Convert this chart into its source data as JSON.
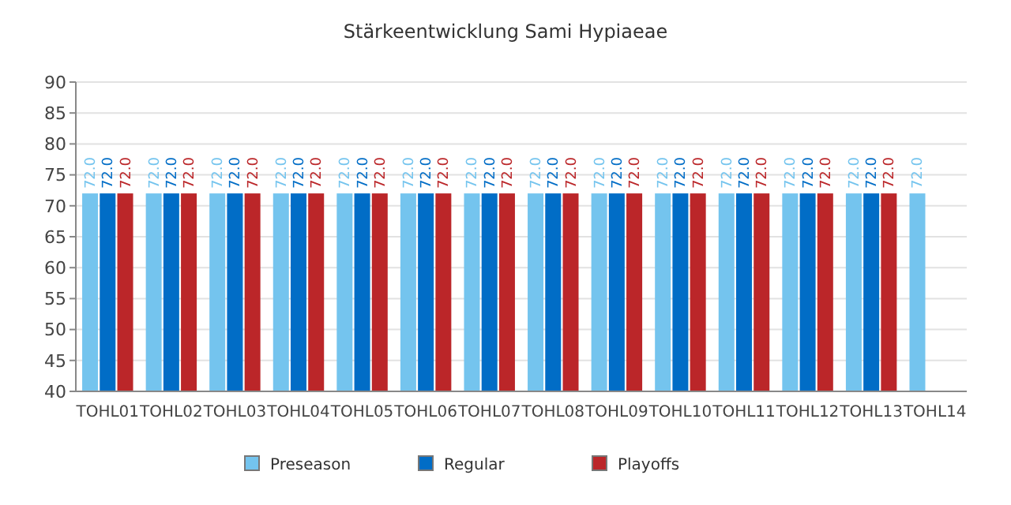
{
  "chart_data": {
    "type": "bar",
    "title": "Stärkeentwicklung Sami Hypiaeae",
    "categories": [
      "TOHL01",
      "TOHL02",
      "TOHL03",
      "TOHL04",
      "TOHL05",
      "TOHL06",
      "TOHL07",
      "TOHL08",
      "TOHL09",
      "TOHL10",
      "TOHL11",
      "TOHL12",
      "TOHL13",
      "TOHL14"
    ],
    "series": [
      {
        "name": "Preseason",
        "color": "#74c4ee",
        "values": [
          72,
          72,
          72,
          72,
          72,
          72,
          72,
          72,
          72,
          72,
          72,
          72,
          72,
          72
        ],
        "value_labels": [
          "72.0",
          "72.0",
          "72.0",
          "72.0",
          "72.0",
          "72.0",
          "72.0",
          "72.0",
          "72.0",
          "72.0",
          "72.0",
          "72.0",
          "72.0",
          "72.0"
        ]
      },
      {
        "name": "Regular",
        "color": "#016dc6",
        "values": [
          72,
          72,
          72,
          72,
          72,
          72,
          72,
          72,
          72,
          72,
          72,
          72,
          72,
          null
        ],
        "value_labels": [
          "72.0",
          "72.0",
          "72.0",
          "72.0",
          "72.0",
          "72.0",
          "72.0",
          "72.0",
          "72.0",
          "72.0",
          "72.0",
          "72.0",
          "72.0",
          null
        ]
      },
      {
        "name": "Playoffs",
        "color": "#bb2629",
        "values": [
          72,
          72,
          72,
          72,
          72,
          72,
          72,
          72,
          72,
          72,
          72,
          72,
          72,
          null
        ],
        "value_labels": [
          "72.0",
          "72.0",
          "72.0",
          "72.0",
          "72.0",
          "72.0",
          "72.0",
          "72.0",
          "72.0",
          "72.0",
          "72.0",
          "72.0",
          "72.0",
          null
        ]
      }
    ],
    "ylim": [
      40,
      90
    ],
    "yticks": [
      40,
      45,
      50,
      55,
      60,
      65,
      70,
      75,
      80,
      85,
      90
    ],
    "grid": "y",
    "legend": "bottom"
  }
}
